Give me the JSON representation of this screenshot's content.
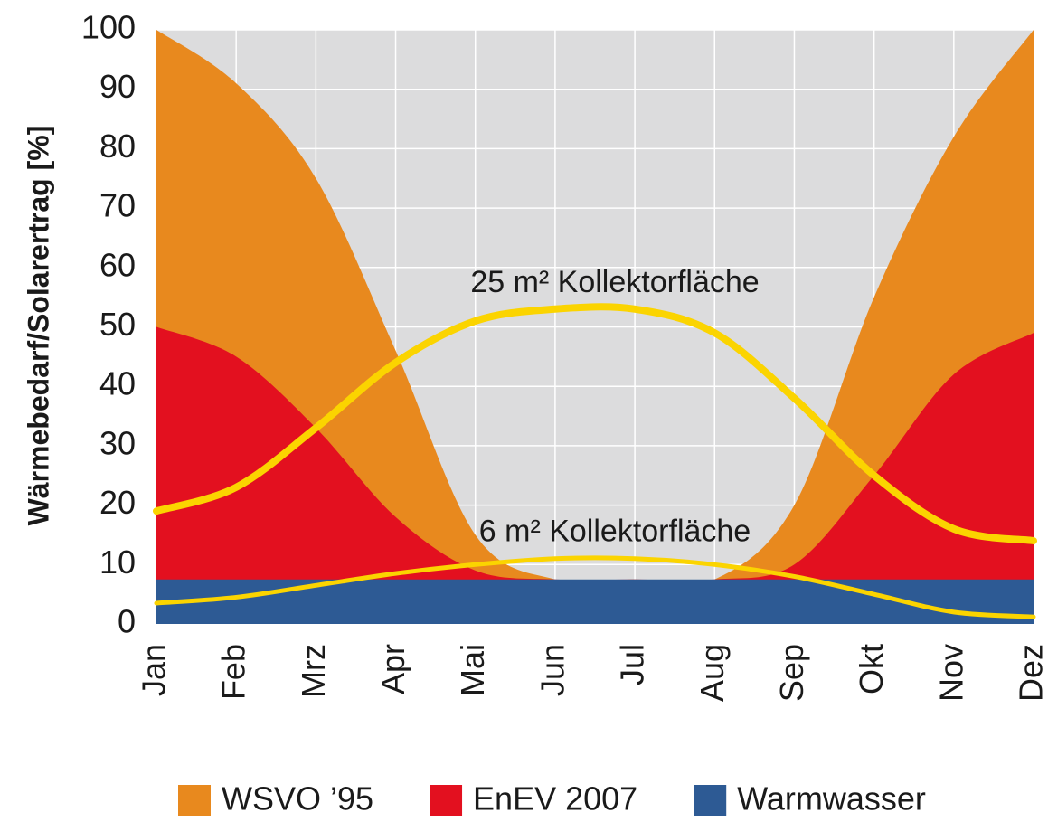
{
  "chart_data": {
    "type": "area",
    "y_label": "Wärmebedarf/Solarertrag [%]",
    "categories": [
      "Jan",
      "Feb",
      "Mrz",
      "Apr",
      "Mai",
      "Jun",
      "Jul",
      "Aug",
      "Sep",
      "Okt",
      "Nov",
      "Dez"
    ],
    "series": [
      {
        "name": "WSVO ’95",
        "color": "#e8891e",
        "style": "area",
        "values": [
          100,
          91,
          75,
          46,
          15,
          7.5,
          7.5,
          7.5,
          20,
          55,
          82,
          100
        ]
      },
      {
        "name": "EnEV 2007",
        "color": "#e3101f",
        "style": "area",
        "values": [
          50,
          45,
          33,
          18,
          9,
          7.5,
          7.5,
          7.5,
          10,
          25,
          42,
          49
        ]
      },
      {
        "name": "Warmwasser",
        "color": "#2d5a94",
        "style": "area",
        "values": [
          7.5,
          7.5,
          7.5,
          7.5,
          7.5,
          7.5,
          7.5,
          7.5,
          7.5,
          7.5,
          7.5,
          7.5
        ]
      },
      {
        "name": "25 m² Kollektorfläche",
        "color": "#fbd400",
        "style": "line",
        "values": [
          19,
          23,
          33,
          44,
          51,
          53,
          53,
          49,
          38,
          25,
          16,
          14
        ]
      },
      {
        "name": "6 m² Kollektorfläche",
        "color": "#fbd400",
        "style": "line",
        "values": [
          3.5,
          4.5,
          6.5,
          8.5,
          10,
          11,
          11,
          10,
          8,
          5,
          2,
          1.2
        ]
      }
    ],
    "ylim": [
      0,
      100
    ],
    "yticks": [
      0,
      10,
      20,
      30,
      40,
      50,
      60,
      70,
      80,
      90,
      100
    ],
    "grid": true,
    "background": "#dcdcdd"
  }
}
